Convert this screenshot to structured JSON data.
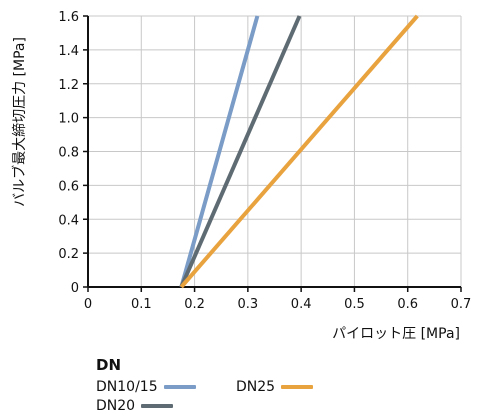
{
  "chart_data": {
    "type": "line",
    "xlabel": "パイロット圧 [MPa]",
    "ylabel": "バルブ最大締切圧力 [MPa]",
    "xlim": [
      0,
      0.7
    ],
    "ylim": [
      0,
      1.6
    ],
    "x_ticks": [
      "0",
      "0.1",
      "0.2",
      "0.3",
      "0.4",
      "0.5",
      "0.6",
      "0.7"
    ],
    "y_ticks": [
      "0",
      "0.2",
      "0.4",
      "0.6",
      "0.8",
      "1.0",
      "1.2",
      "1.4",
      "1.6"
    ],
    "grid": true,
    "legend_title": "DN",
    "legend_position": "bottom",
    "series": [
      {
        "name": "DN10/15",
        "color": "#7a9cc6",
        "points": [
          [
            0.175,
            0
          ],
          [
            0.318,
            1.6
          ]
        ]
      },
      {
        "name": "DN20",
        "color": "#5f6b73",
        "points": [
          [
            0.175,
            0
          ],
          [
            0.397,
            1.6
          ]
        ]
      },
      {
        "name": "DN25",
        "color": "#e8a23e",
        "points": [
          [
            0.175,
            0
          ],
          [
            0.618,
            1.6
          ]
        ]
      }
    ]
  }
}
